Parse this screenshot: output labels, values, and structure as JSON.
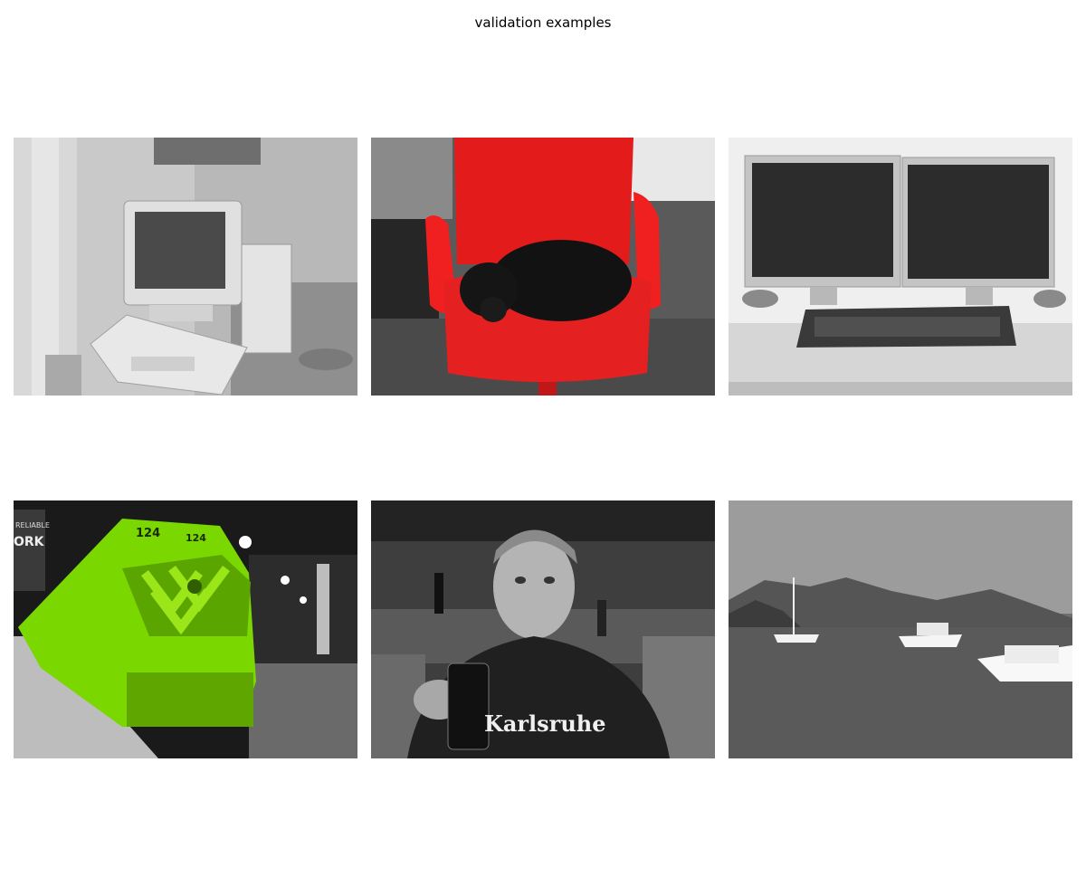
{
  "figure": {
    "title": "validation examples"
  },
  "panels": [
    {
      "row": 1,
      "col": 1,
      "mask_color": null,
      "icon": "computer-crt-icon"
    },
    {
      "row": 1,
      "col": 2,
      "mask_color": "#ff2020",
      "icon": "chair-with-dog-icon"
    },
    {
      "row": 1,
      "col": 3,
      "mask_color": null,
      "icon": "dual-monitor-icon"
    },
    {
      "row": 2,
      "col": 1,
      "mask_color": "#7fe000",
      "icon": "train-locomotive-icon",
      "visible_text": [
        "124",
        "124",
        "RELIABLE",
        "ORK"
      ]
    },
    {
      "row": 2,
      "col": 2,
      "mask_color": null,
      "icon": "person-with-glass-icon",
      "visible_text": [
        "Karlsruhe"
      ]
    },
    {
      "row": 2,
      "col": 3,
      "mask_color": null,
      "icon": "boats-on-sea-icon"
    }
  ]
}
